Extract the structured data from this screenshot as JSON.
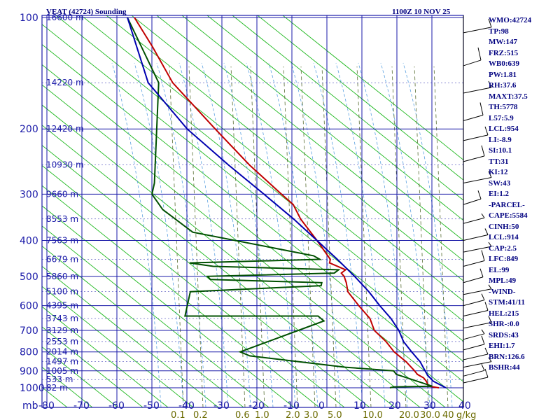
{
  "header": {
    "title": "VEAT (42724) Sounding",
    "datetime": "1100Z 10 NOV 25"
  },
  "indices": [
    "WMO:42724",
    "TP:98",
    "MW:147",
    "FRZ:515",
    "WB0:639",
    "PW:1.81",
    "RH:37.6",
    "MAXT:37.5",
    "TH:5778",
    "L57:5.9",
    "LCL:954",
    "LI:-8.9",
    "SI:10.1",
    "TT:31",
    "KI:12",
    "SW:43",
    "EI:1.2",
    "-PARCEL-",
    "CAPE:5584",
    "CINH:50",
    "LCL:914",
    "CAP:2.5",
    "LFC:849",
    "EL:99",
    "MPL:49",
    "-WIND-",
    "STM:41/11",
    "HEL:215",
    "SHR-:0.0",
    "SRDS:43",
    "EHI:1.7",
    "BRN:126.6",
    "BSHR:44"
  ],
  "colors": {
    "isobar": "#1a1aa8",
    "dry_adiabat": "#1fb81f",
    "moist_adiabat": "#5aa0e0",
    "mixing_ratio": "#556b2f",
    "temperature": "#c00000",
    "dewpoint": "#005000",
    "parcel": "#0000b0",
    "wind": "#000000",
    "text": "#000080"
  },
  "chart_data": {
    "type": "line",
    "title": "VEAT (42724) Sounding",
    "xlabel": "mb",
    "ylabel": "",
    "pressure_ticks": [
      100,
      200,
      300,
      400,
      500,
      600,
      700,
      800,
      900,
      1000
    ],
    "temp_ticks": [
      -80,
      -70,
      -60,
      -50,
      -40,
      -30,
      -20,
      -10,
      0,
      10,
      20,
      30,
      40
    ],
    "xlim": [
      -80,
      40
    ],
    "ylim": [
      1000,
      100
    ],
    "mixing_ratio_labels": [
      "0.1",
      "0.2",
      "0.6",
      "1.0",
      "2.0",
      "3.0",
      "5.0",
      "10.0",
      "20.0",
      "30.0",
      "40",
      "g/kg"
    ],
    "height_labels": [
      {
        "p": 100,
        "label": "16600 m"
      },
      {
        "p": 150,
        "label": "14220 m"
      },
      {
        "p": 200,
        "label": "12420 m"
      },
      {
        "p": 250,
        "label": "10930 m"
      },
      {
        "p": 300,
        "label": "9660 m"
      },
      {
        "p": 350,
        "label": "8553 m"
      },
      {
        "p": 400,
        "label": "7563 m"
      },
      {
        "p": 450,
        "label": "6679 m"
      },
      {
        "p": 500,
        "label": "5860 m"
      },
      {
        "p": 550,
        "label": "5100 m"
      },
      {
        "p": 600,
        "label": "4395 m"
      },
      {
        "p": 650,
        "label": "3743 m"
      },
      {
        "p": 700,
        "label": "3129 m"
      },
      {
        "p": 750,
        "label": "2553 m"
      },
      {
        "p": 800,
        "label": "2014 m"
      },
      {
        "p": 850,
        "label": "1497 m"
      },
      {
        "p": 900,
        "label": "1005 m"
      },
      {
        "p": 950,
        "label": "533 m"
      },
      {
        "p": 1000,
        "label": "82 m"
      }
    ],
    "series": [
      {
        "name": "Temperature",
        "values": [
          [
            1000,
            32
          ],
          [
            990,
            29
          ],
          [
            960,
            28
          ],
          [
            940,
            27
          ],
          [
            920,
            25
          ],
          [
            900,
            24
          ],
          [
            850,
            21
          ],
          [
            800,
            17
          ],
          [
            750,
            14
          ],
          [
            700,
            10
          ],
          [
            650,
            8
          ],
          [
            600,
            4
          ],
          [
            550,
            0
          ],
          [
            520,
            -1
          ],
          [
            500,
            -2
          ],
          [
            490,
            -3
          ],
          [
            480,
            -2
          ],
          [
            460,
            -7
          ],
          [
            450,
            -7
          ],
          [
            400,
            -12
          ],
          [
            350,
            -18
          ],
          [
            320,
            -21
          ],
          [
            300,
            -25
          ],
          [
            250,
            -36
          ],
          [
            200,
            -48
          ],
          [
            150,
            -63
          ],
          [
            120,
            -71
          ],
          [
            100,
            -78
          ]
        ]
      },
      {
        "name": "Dewpoint",
        "values": [
          [
            1000,
            18
          ],
          [
            995,
            19
          ],
          [
            990,
            30
          ],
          [
            920,
            19
          ],
          [
            900,
            18
          ],
          [
            880,
            4
          ],
          [
            820,
            -24
          ],
          [
            800,
            -27
          ],
          [
            660,
            -5
          ],
          [
            640,
            -7
          ],
          [
            640,
            -45
          ],
          [
            550,
            -45
          ],
          [
            530,
            -8
          ],
          [
            520,
            -8
          ],
          [
            510,
            -40
          ],
          [
            500,
            -41
          ],
          [
            490,
            -5
          ],
          [
            480,
            -4
          ],
          [
            470,
            -40
          ],
          [
            460,
            -47
          ],
          [
            450,
            -10
          ],
          [
            440,
            -12
          ],
          [
            380,
            -48
          ],
          [
            330,
            -58
          ],
          [
            300,
            -62
          ],
          [
            280,
            -62
          ],
          [
            150,
            -67
          ],
          [
            100,
            -80
          ]
        ]
      },
      {
        "name": "Parcel",
        "values": [
          [
            1000,
            34
          ],
          [
            960,
            30
          ],
          [
            925,
            28
          ],
          [
            900,
            27
          ],
          [
            850,
            25
          ],
          [
            800,
            22
          ],
          [
            750,
            19
          ],
          [
            700,
            17
          ],
          [
            650,
            14
          ],
          [
            600,
            10
          ],
          [
            550,
            6
          ],
          [
            500,
            1
          ],
          [
            450,
            -5
          ],
          [
            400,
            -12
          ],
          [
            350,
            -20
          ],
          [
            300,
            -30
          ],
          [
            250,
            -42
          ],
          [
            200,
            -56
          ],
          [
            150,
            -70
          ],
          [
            100,
            -80
          ]
        ]
      }
    ]
  }
}
